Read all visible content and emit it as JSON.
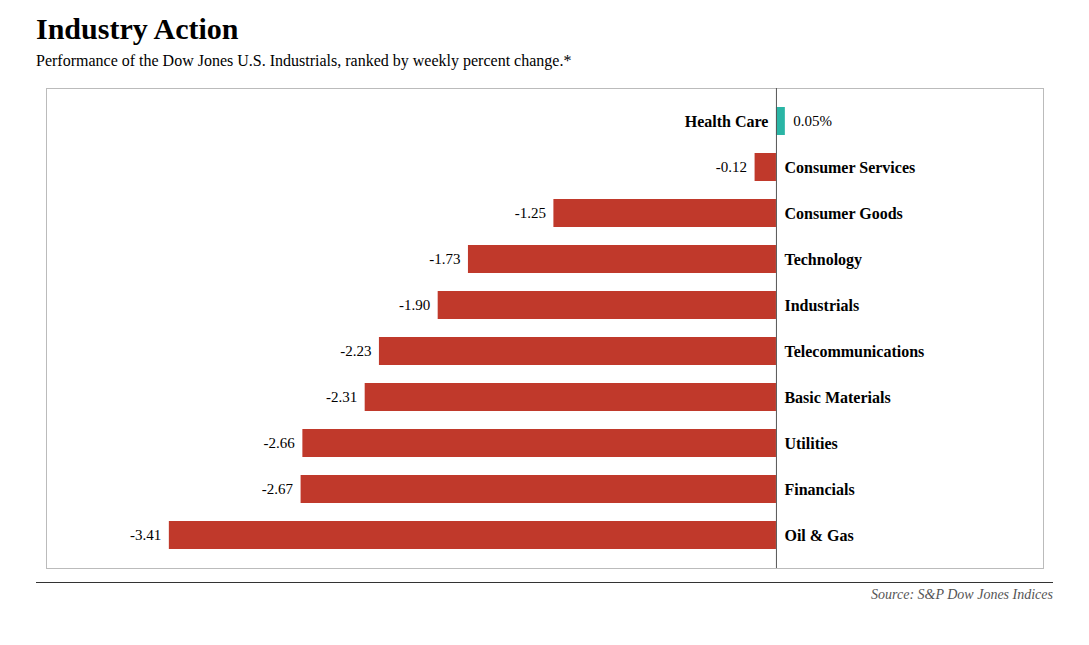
{
  "chart_data": {
    "type": "bar",
    "orientation": "horizontal",
    "title": "Industry Action",
    "subtitle": "Performance of the Dow Jones U.S. Industrials, ranked by weekly percent change.*",
    "source": "Source: S&P Dow Jones Indices",
    "categories": [
      "Health Care",
      "Consumer Services",
      "Consumer Goods",
      "Technology",
      "Industrials",
      "Telecommunications",
      "Basic Materials",
      "Utilities",
      "Financials",
      "Oil & Gas"
    ],
    "values": [
      0.05,
      -0.12,
      -1.25,
      -1.73,
      -1.9,
      -2.23,
      -2.31,
      -2.66,
      -2.67,
      -3.41
    ],
    "value_labels": [
      "0.05%",
      "-0.12",
      "-1.25",
      "-1.73",
      "-1.90",
      "-2.23",
      "-2.31",
      "-2.66",
      "-2.67",
      "-3.41"
    ],
    "colors": [
      "#2ab5a5",
      "#c0392b",
      "#c0392b",
      "#c0392b",
      "#c0392b",
      "#c0392b",
      "#c0392b",
      "#c0392b",
      "#c0392b",
      "#c0392b"
    ],
    "xlim": [
      -4.1,
      1.5
    ],
    "data_labels": true,
    "tick_labels": false,
    "grid": false
  }
}
